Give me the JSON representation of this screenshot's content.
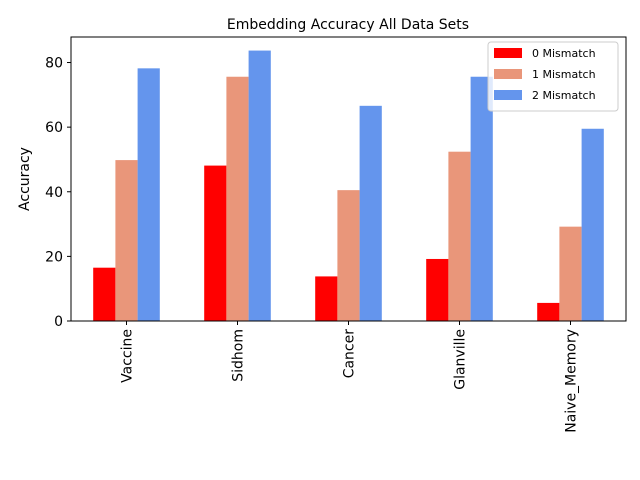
{
  "chart_data": {
    "type": "bar",
    "title": "Embedding Accuracy All Data Sets",
    "xlabel": "",
    "ylabel": "Accuracy",
    "categories": [
      "Vaccine",
      "Sidhom",
      "Cancer",
      "Glanville",
      "Naive_Memory"
    ],
    "series": [
      {
        "name": "0 Mismatch",
        "color": "#ff0000",
        "values": [
          16.5,
          48.1,
          13.8,
          19.2,
          5.6
        ]
      },
      {
        "name": "1 Mismatch",
        "color": "#e9967a",
        "values": [
          49.8,
          75.6,
          40.5,
          52.4,
          29.2
        ]
      },
      {
        "name": "2 Mismatch",
        "color": "#6495ed",
        "values": [
          78.2,
          83.7,
          66.6,
          75.6,
          59.5
        ]
      }
    ],
    "ylim": [
      0,
      87.9
    ],
    "yticks": [
      0,
      20,
      40,
      60,
      80
    ],
    "legend_position": "top-right",
    "grid": false
  }
}
